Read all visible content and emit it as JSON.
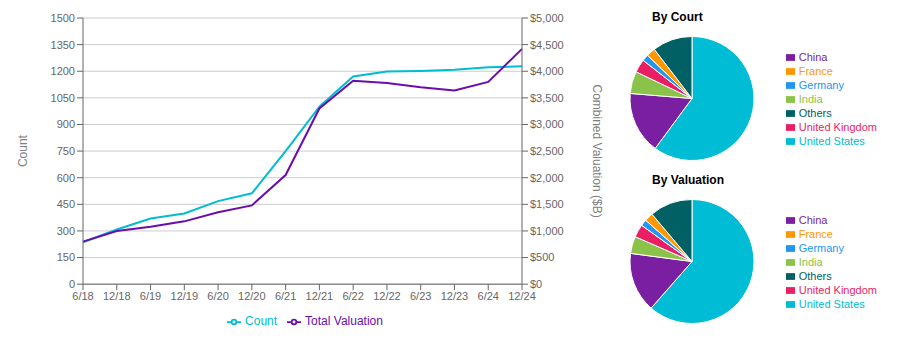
{
  "chart_data": [
    {
      "type": "line",
      "categories": [
        "6/18",
        "12/18",
        "6/19",
        "12/19",
        "6/20",
        "12/20",
        "6/21",
        "12/21",
        "6/22",
        "12/22",
        "6/23",
        "12/23",
        "6/24",
        "12/24"
      ],
      "series": [
        {
          "name": "Count",
          "color": "#00BCD4",
          "values": [
            236,
            308,
            370,
            398,
            468,
            512,
            750,
            1000,
            1170,
            1198,
            1202,
            1208,
            1222,
            1228
          ]
        },
        {
          "name": "Total Valuation",
          "color": "#6A0DAD",
          "axis": "y2",
          "values": [
            800,
            1000,
            1080,
            1180,
            1350,
            1480,
            2050,
            3300,
            3820,
            3780,
            3700,
            3640,
            3800,
            4420
          ]
        }
      ],
      "ylabel": "Count",
      "y2label": "Combined Valuation ($B)",
      "ylim": [
        0,
        1500
      ],
      "yticks": [
        0,
        150,
        300,
        450,
        600,
        750,
        900,
        1050,
        1200,
        1350,
        1500
      ],
      "y2lim": [
        0,
        5000
      ],
      "y2ticks": [
        {
          "value": 0,
          "label": "$0"
        },
        {
          "value": 500,
          "label": "$500"
        },
        {
          "value": 1000,
          "label": "$1,000"
        },
        {
          "value": 1500,
          "label": "$1,500"
        },
        {
          "value": 2000,
          "label": "$2,000"
        },
        {
          "value": 2500,
          "label": "$2,500"
        },
        {
          "value": 3000,
          "label": "$3,000"
        },
        {
          "value": 3500,
          "label": "$3,500"
        },
        {
          "value": 4000,
          "label": "$4,000"
        },
        {
          "value": 4500,
          "label": "$4,500"
        },
        {
          "value": 5000,
          "label": "$5,000"
        }
      ],
      "grid": true,
      "legend": "bottom"
    },
    {
      "type": "pie",
      "title": "By Court",
      "categories": [
        "United States",
        "China",
        "India",
        "United Kingdom",
        "Germany",
        "France",
        "Others"
      ],
      "values": [
        52,
        14,
        5,
        3,
        1.5,
        2,
        9
      ],
      "colors": [
        "#00BCD4",
        "#7B1FA2",
        "#8BC34A",
        "#E91E63",
        "#2196F3",
        "#FF9800",
        "#006064"
      ],
      "legend": "right"
    },
    {
      "type": "pie",
      "title": "By Valuation",
      "categories": [
        "United States",
        "China",
        "India",
        "United Kingdom",
        "Germany",
        "France",
        "Others"
      ],
      "values": [
        55,
        14,
        4,
        3,
        1.5,
        2,
        10
      ],
      "colors": [
        "#00BCD4",
        "#7B1FA2",
        "#8BC34A",
        "#E91E63",
        "#2196F3",
        "#FF9800",
        "#006064"
      ],
      "legend": "right"
    }
  ]
}
